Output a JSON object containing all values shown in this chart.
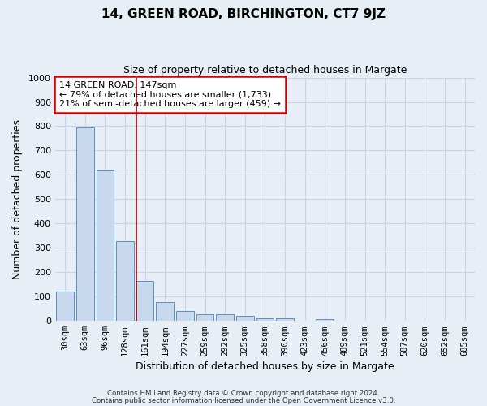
{
  "title1": "14, GREEN ROAD, BIRCHINGTON, CT7 9JZ",
  "title2": "Size of property relative to detached houses in Margate",
  "xlabel": "Distribution of detached houses by size in Margate",
  "ylabel": "Number of detached properties",
  "categories": [
    "30sqm",
    "63sqm",
    "96sqm",
    "128sqm",
    "161sqm",
    "194sqm",
    "227sqm",
    "259sqm",
    "292sqm",
    "325sqm",
    "358sqm",
    "390sqm",
    "423sqm",
    "456sqm",
    "489sqm",
    "521sqm",
    "554sqm",
    "587sqm",
    "620sqm",
    "652sqm",
    "685sqm"
  ],
  "values": [
    120,
    795,
    622,
    328,
    163,
    78,
    40,
    28,
    28,
    20,
    12,
    10,
    0,
    8,
    0,
    0,
    0,
    0,
    0,
    0,
    0
  ],
  "bar_color": "#c8d9ee",
  "bar_edge_color": "#5b8fc9",
  "annotation_title": "14 GREEN ROAD: 147sqm",
  "annotation_line1": "← 79% of detached houses are smaller (1,733)",
  "annotation_line2": "21% of semi-detached houses are larger (459) →",
  "annotation_box_color": "#ffffff",
  "annotation_border_color": "#cc0000",
  "vline_color": "#aa0000",
  "ylim": [
    0,
    1000
  ],
  "yticks": [
    0,
    100,
    200,
    300,
    400,
    500,
    600,
    700,
    800,
    900,
    1000
  ],
  "grid_color": "#c8d4e8",
  "background_color": "#e8eef6",
  "footnote1": "Contains HM Land Registry data © Crown copyright and database right 2024.",
  "footnote2": "Contains public sector information licensed under the Open Government Licence v3.0.",
  "fig_width": 6.0,
  "fig_height": 5.0
}
